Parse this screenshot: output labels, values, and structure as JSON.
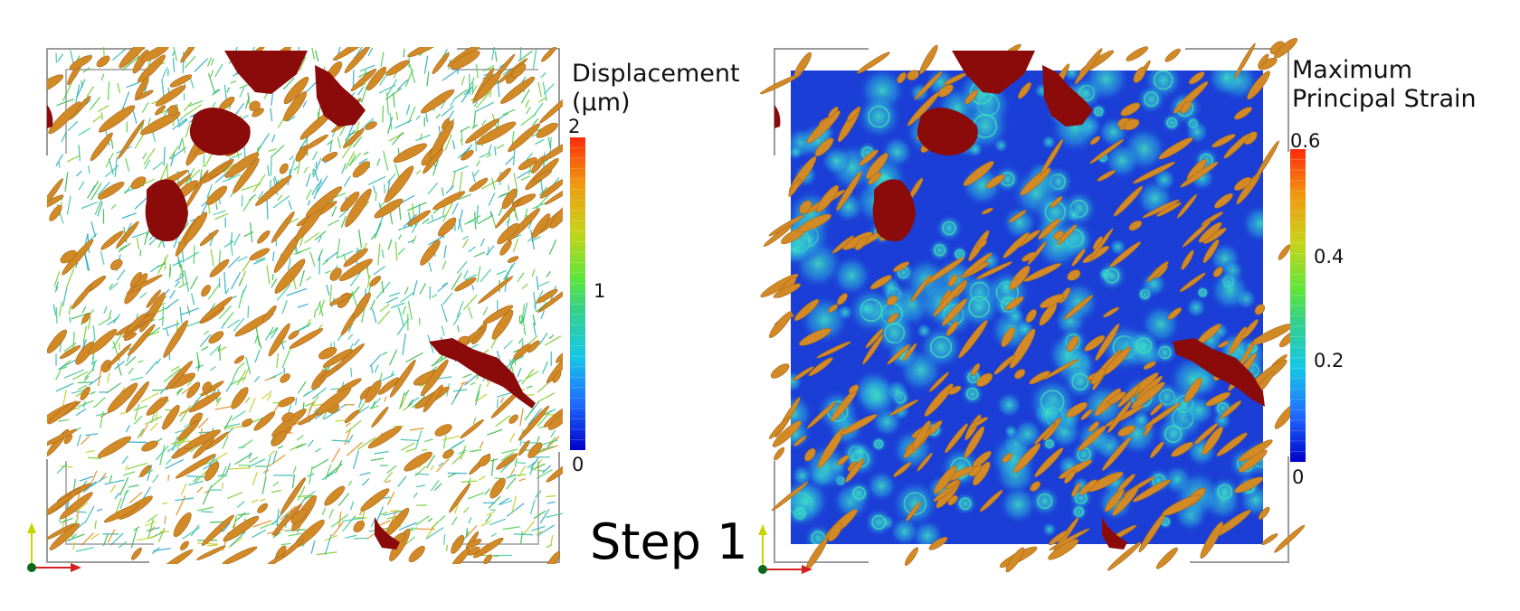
{
  "step_label": "Step 1",
  "left_panel": {
    "colorbar_title_line1": "Displacement",
    "colorbar_title_line2": "(μm)",
    "tick_max": "2",
    "tick_mid": "1",
    "tick_min": "0"
  },
  "right_panel": {
    "colorbar_title_line1": "Maximum",
    "colorbar_title_line2": "Principal Strain",
    "tick_max": "0.6",
    "tick_04": "0.4",
    "tick_02": "0.2",
    "tick_min": "0"
  },
  "colors": {
    "fiber": "#d18a25",
    "pore": "#8b0a0a",
    "strain_field": "#1b3fd6",
    "axis_up": "#c8d400",
    "axis_right": "#d42020",
    "axis_origin": "#0a6a1a"
  }
}
